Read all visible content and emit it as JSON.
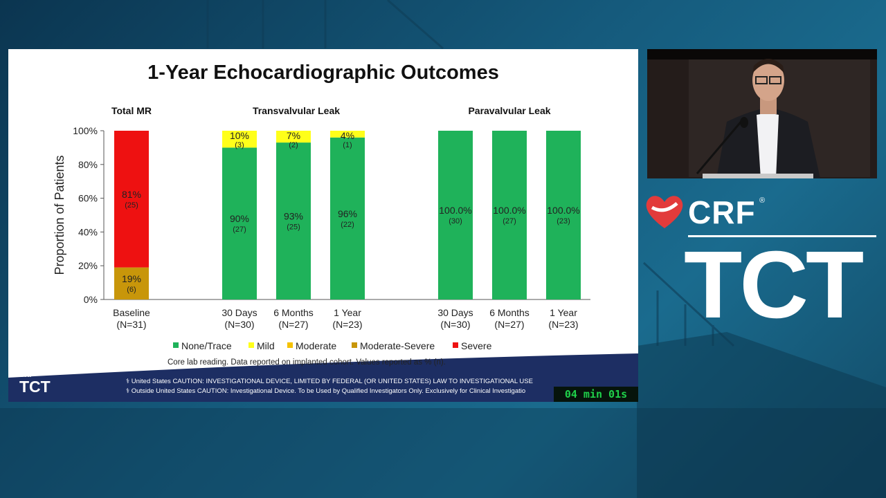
{
  "slide": {
    "title": "1-Year Echocardiographic Outcomes",
    "footnote": "Core lab reading. Data reported on implanted cohort. Values reported as % (n).",
    "caution_us": "⚕ United States CAUTION: INVESTIGATIONAL DEVICE, LIMITED BY FEDERAL (OR UNITED STATES) LAW TO INVESTIGATIONAL USE",
    "caution_ous": "⚕ Outside United States CAUTION: Investigational Device. To be Used by Qualified Investigators Only. Exclusively for Clinical Investigatio",
    "logo_crf": "CRF",
    "logo_tct": "TCT"
  },
  "timer": "04 min 01s",
  "brand": {
    "crf": "CRF",
    "reg": "®",
    "tct": "TCT"
  },
  "colors": {
    "none_trace": "#1fb25a",
    "mild": "#ffff1a",
    "moderate": "#f5c200",
    "moderate_severe": "#c8960a",
    "severe": "#ee1111",
    "footer_band": "#1d2e63"
  },
  "chart_data": {
    "type": "bar",
    "stacked": true,
    "ylabel": "Proportion of Patients",
    "ylim": [
      0,
      100
    ],
    "yticks": [
      "0%",
      "20%",
      "40%",
      "60%",
      "80%",
      "100%"
    ],
    "groups": [
      {
        "title": "Total MR",
        "categories": [
          {
            "label": "Baseline",
            "n": "(N=31)"
          }
        ]
      },
      {
        "title": "Transvalvular Leak",
        "categories": [
          {
            "label": "30 Days",
            "n": "(N=30)"
          },
          {
            "label": "6 Months",
            "n": "(N=27)"
          },
          {
            "label": "1 Year",
            "n": "(N=23)"
          }
        ]
      },
      {
        "title": "Paravalvular Leak",
        "categories": [
          {
            "label": "30 Days",
            "n": "(N=30)"
          },
          {
            "label": "6 Months",
            "n": "(N=27)"
          },
          {
            "label": "1 Year",
            "n": "(N=23)"
          }
        ]
      }
    ],
    "bars": [
      {
        "segments": [
          {
            "series": "Moderate-Severe",
            "value": 19,
            "label": "19%",
            "count": "(6)"
          },
          {
            "series": "Severe",
            "value": 81,
            "label": "81%",
            "count": "(25)"
          }
        ]
      },
      {
        "segments": [
          {
            "series": "None/Trace",
            "value": 90,
            "label": "90%",
            "count": "(27)"
          },
          {
            "series": "Mild",
            "value": 10,
            "label": "10%",
            "count": "(3)"
          }
        ]
      },
      {
        "segments": [
          {
            "series": "None/Trace",
            "value": 93,
            "label": "93%",
            "count": "(25)"
          },
          {
            "series": "Mild",
            "value": 7,
            "label": "7%",
            "count": "(2)"
          }
        ]
      },
      {
        "segments": [
          {
            "series": "None/Trace",
            "value": 96,
            "label": "96%",
            "count": "(22)"
          },
          {
            "series": "Mild",
            "value": 4,
            "label": "4%",
            "count": "(1)"
          }
        ]
      },
      {
        "segments": [
          {
            "series": "None/Trace",
            "value": 100,
            "label": "100.0%",
            "count": "(30)"
          }
        ]
      },
      {
        "segments": [
          {
            "series": "None/Trace",
            "value": 100,
            "label": "100.0%",
            "count": "(27)"
          }
        ]
      },
      {
        "segments": [
          {
            "series": "None/Trace",
            "value": 100,
            "label": "100.0%",
            "count": "(23)"
          }
        ]
      }
    ],
    "legend": [
      "None/Trace",
      "Mild",
      "Moderate",
      "Moderate-Severe",
      "Severe"
    ],
    "legend_position": "bottom"
  }
}
